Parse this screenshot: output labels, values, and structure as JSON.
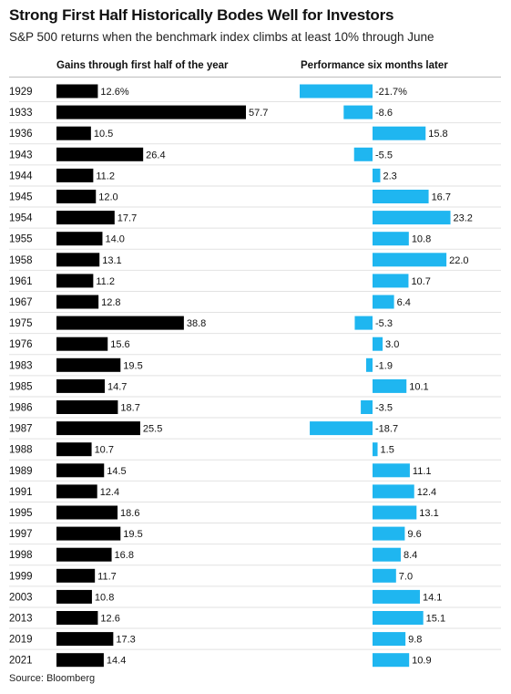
{
  "title": "Strong First Half Historically Bodes Well for Investors",
  "subtitle": "S&P 500 returns when the benchmark index climbs at least 10% through June",
  "source": "Source: Bloomberg",
  "colors": {
    "left_bars": "#000000",
    "right_bars": "#1fb6f0",
    "text": "#111111"
  },
  "chart_data": [
    {
      "type": "bar",
      "orientation": "horizontal",
      "title": "Gains through first half of the year",
      "categories": [
        "1929",
        "1933",
        "1936",
        "1943",
        "1944",
        "1945",
        "1954",
        "1955",
        "1958",
        "1961",
        "1967",
        "1975",
        "1976",
        "1983",
        "1985",
        "1986",
        "1987",
        "1988",
        "1989",
        "1991",
        "1995",
        "1997",
        "1998",
        "1999",
        "2003",
        "2013",
        "2019",
        "2021"
      ],
      "values": [
        12.6,
        57.7,
        10.5,
        26.4,
        11.2,
        12.0,
        17.7,
        14.0,
        13.1,
        11.2,
        12.8,
        38.8,
        15.6,
        19.5,
        14.7,
        18.7,
        25.5,
        10.7,
        14.5,
        12.4,
        18.6,
        19.5,
        16.8,
        11.7,
        10.8,
        12.6,
        17.3,
        14.4
      ],
      "labels": [
        "12.6%",
        "57.7",
        "10.5",
        "26.4",
        "11.2",
        "12.0",
        "17.7",
        "14.0",
        "13.1",
        "11.2",
        "12.8",
        "38.8",
        "15.6",
        "19.5",
        "14.7",
        "18.7",
        "25.5",
        "10.7",
        "14.5",
        "12.4",
        "18.6",
        "19.5",
        "16.8",
        "11.7",
        "10.8",
        "12.6",
        "17.3",
        "14.4"
      ]
    },
    {
      "type": "bar",
      "orientation": "horizontal",
      "title": "Performance six months later",
      "categories": [
        "1929",
        "1933",
        "1936",
        "1943",
        "1944",
        "1945",
        "1954",
        "1955",
        "1958",
        "1961",
        "1967",
        "1975",
        "1976",
        "1983",
        "1985",
        "1986",
        "1987",
        "1988",
        "1989",
        "1991",
        "1995",
        "1997",
        "1998",
        "1999",
        "2003",
        "2013",
        "2019",
        "2021"
      ],
      "values": [
        -21.7,
        -8.6,
        15.8,
        -5.5,
        2.3,
        16.7,
        23.2,
        10.8,
        22.0,
        10.7,
        6.4,
        -5.3,
        3.0,
        -1.9,
        10.1,
        -3.5,
        -18.7,
        1.5,
        11.1,
        12.4,
        13.1,
        9.6,
        8.4,
        7.0,
        14.1,
        15.1,
        9.8,
        10.9
      ],
      "labels": [
        "-21.7%",
        "-8.6",
        "15.8",
        "-5.5",
        "2.3",
        "16.7",
        "23.2",
        "10.8",
        "22.0",
        "10.7",
        "6.4",
        "-5.3",
        "3.0",
        "-1.9",
        "10.1",
        "-3.5",
        "-18.7",
        "1.5",
        "11.1",
        "12.4",
        "13.1",
        "9.6",
        "8.4",
        "7.0",
        "14.1",
        "15.1",
        "9.8",
        "10.9"
      ]
    }
  ]
}
